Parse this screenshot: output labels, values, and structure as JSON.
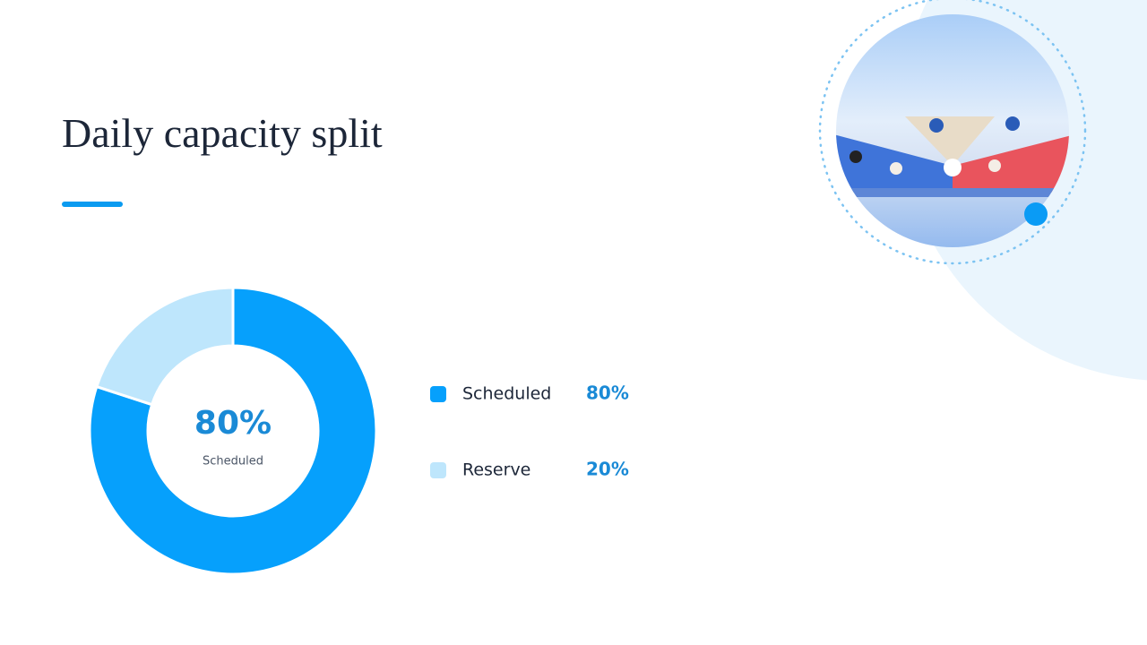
{
  "chart_data": {
    "type": "pie",
    "title": "Daily capacity split",
    "categories": [
      "Scheduled",
      "Reserve"
    ],
    "values": [
      80,
      20
    ],
    "value_labels": [
      "80%",
      "20%"
    ],
    "colors": [
      "#06a0fc",
      "#bee6fc"
    ],
    "donut": true
  }
}
